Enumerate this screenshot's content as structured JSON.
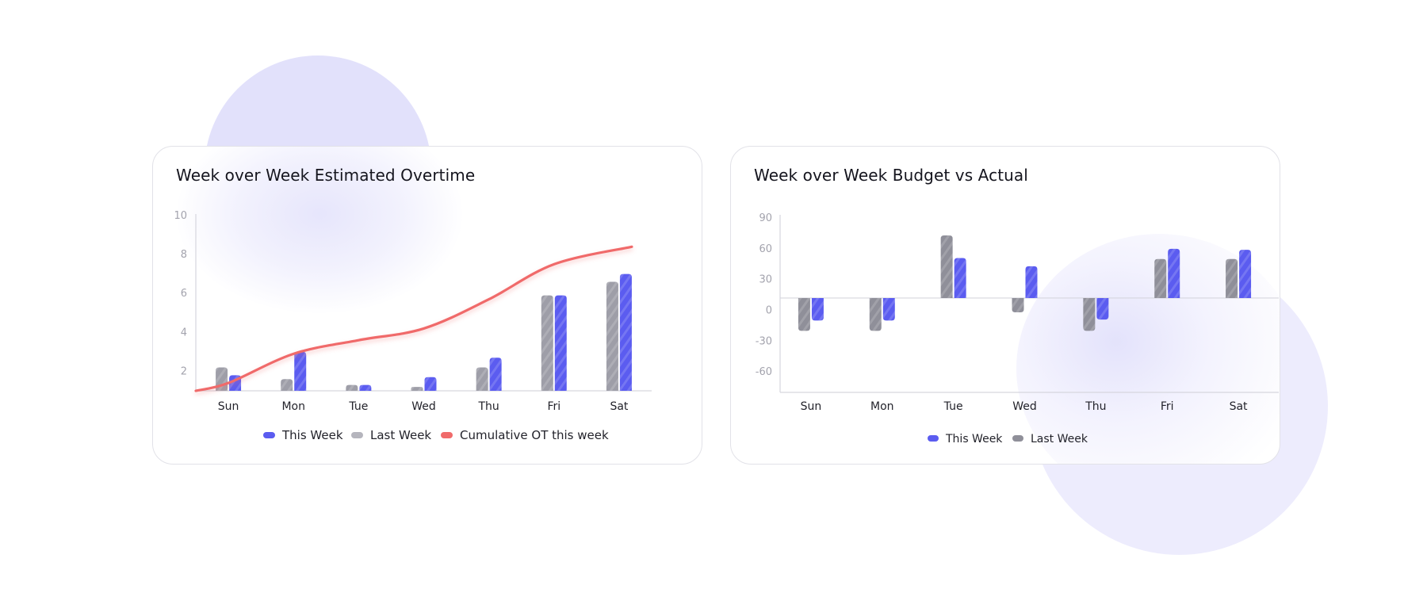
{
  "colors": {
    "this_week": "#5b5cf0",
    "last_week_left": "#9e9ea8",
    "last_week_legend_left": "#b5b5bd",
    "last_week_right": "#8f8f99",
    "cumulative": "#f06b6b",
    "axis": "#d6d6de"
  },
  "chart_data": [
    {
      "type": "bar",
      "title": "Week over Week Estimated Overtime",
      "categories": [
        "Sun",
        "Mon",
        "Tue",
        "Wed",
        "Thu",
        "Fri",
        "Sat"
      ],
      "yticks": [
        "2",
        "4",
        "6",
        "8",
        "10"
      ],
      "ylim": [
        1,
        10
      ],
      "series": [
        {
          "name": "This Week",
          "type": "bar",
          "values": [
            1.8,
            3.0,
            1.3,
            1.7,
            2.7,
            5.9,
            7.0
          ]
        },
        {
          "name": "Last Week",
          "type": "bar",
          "values": [
            2.2,
            1.6,
            1.3,
            1.2,
            2.2,
            5.9,
            6.6
          ]
        },
        {
          "name": "Cumulative OT this week",
          "type": "line",
          "values": [
            1.4,
            2.9,
            3.6,
            4.2,
            5.7,
            7.5,
            8.4
          ]
        }
      ],
      "legend": "bottom",
      "grid": false
    },
    {
      "type": "bar",
      "title": "Week over Week Budget vs Actual",
      "categories": [
        "Sun",
        "Mon",
        "Tue",
        "Wed",
        "Thu",
        "Fri",
        "Sat"
      ],
      "yticks": [
        "90",
        "60",
        "30",
        "0",
        "-30",
        "-60"
      ],
      "ylim": [
        -80,
        90
      ],
      "series": [
        {
          "name": "This Week",
          "values": [
            -22,
            -22,
            39,
            31,
            -21,
            48,
            47
          ]
        },
        {
          "name": "Last Week",
          "values": [
            -32,
            -32,
            61,
            -14,
            -32,
            38,
            38
          ]
        }
      ],
      "legend": "bottom",
      "grid": false
    }
  ]
}
